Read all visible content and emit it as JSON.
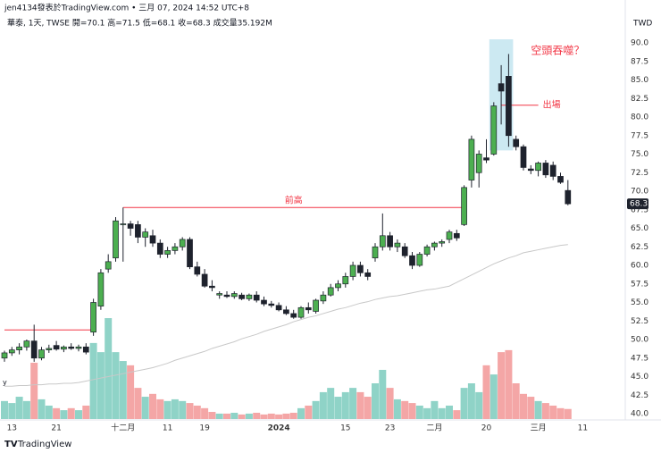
{
  "header": {
    "credit": "jen4134發表於TradingView.com • 三月 07, 2024 14:52 UTC+8",
    "legend": "華泰, 1天, TWSE  開=70.1  高=71.5  低=68.1  收=68.3  成交量35.192M",
    "currency": "TWD",
    "brand": "TradingView",
    "stray_label": "y"
  },
  "chart_data": {
    "type": "candlestick",
    "categories": [
      null,
      "13",
      null,
      null,
      null,
      null,
      null,
      "21",
      null,
      null,
      null,
      null,
      null,
      null,
      null,
      null,
      "十二月",
      null,
      null,
      null,
      null,
      null,
      "11",
      null,
      null,
      null,
      null,
      "19",
      null,
      null,
      null,
      null,
      null,
      null,
      null,
      null,
      null,
      "2024",
      null,
      null,
      null,
      null,
      null,
      null,
      null,
      null,
      "15",
      null,
      null,
      null,
      null,
      null,
      "23",
      null,
      null,
      null,
      null,
      null,
      "二月",
      null,
      null,
      null,
      null,
      null,
      null,
      "20",
      null,
      null,
      null,
      null,
      null,
      null,
      "三月",
      null,
      null,
      null,
      null,
      null,
      "11",
      null
    ],
    "open": [
      47.5,
      48.2,
      48.6,
      49,
      49.8,
      47.5,
      48.6,
      49.2,
      48.7,
      49,
      48.8,
      49,
      51,
      54.5,
      59.5,
      61,
      65.5,
      65.6,
      65.5,
      63.8,
      64,
      63,
      61.5,
      62,
      62.5,
      63.5,
      59.8,
      58.8,
      57.2,
      56,
      56,
      55.8,
      56,
      55.5,
      56,
      55.3,
      54.8,
      54.6,
      54,
      53.5,
      53,
      54.3,
      53.8,
      55.2,
      56,
      57,
      57.5,
      58.5,
      60,
      59,
      61,
      62.5,
      64,
      62.5,
      62.5,
      61.3,
      60,
      61.5,
      62.5,
      63,
      63.5,
      64.3,
      65.5,
      71.5,
      72.5,
      74.5,
      75,
      84.5,
      85.5,
      77,
      76,
      73,
      72.8,
      73.8,
      73.5,
      72,
      70.1,
      null,
      null,
      null
    ],
    "high": [
      48.5,
      49,
      49.5,
      50,
      52,
      49,
      49.3,
      49.8,
      49.2,
      49.5,
      49.3,
      49.5,
      55.5,
      59.5,
      61.5,
      66.5,
      67.8,
      66,
      66,
      65,
      64.8,
      63.5,
      62.5,
      63,
      63.8,
      63.8,
      60.5,
      59.5,
      58,
      56.5,
      56.5,
      56.5,
      56.3,
      56.2,
      56.5,
      55.8,
      55.2,
      55,
      54.5,
      54,
      54.5,
      55,
      55.5,
      56.5,
      57.5,
      58,
      59,
      60.5,
      60.5,
      59.5,
      63,
      67,
      64.5,
      63.5,
      63,
      61.8,
      61.8,
      62.8,
      63.2,
      63.5,
      64.8,
      64.8,
      70.8,
      77.5,
      75.5,
      77,
      82,
      87,
      88.5,
      77.5,
      76.3,
      73.5,
      74,
      74.2,
      74,
      72.5,
      71.5,
      null,
      null,
      null
    ],
    "low": [
      47,
      47.8,
      48,
      48.5,
      47,
      47.2,
      48.2,
      48.5,
      48.3,
      48.6,
      48.4,
      48,
      50.5,
      54,
      59,
      60.5,
      60.5,
      64,
      63,
      62.5,
      62.5,
      61,
      61,
      61.5,
      62,
      59.5,
      58.5,
      57,
      56.5,
      55.5,
      55.6,
      55.5,
      55.3,
      55.2,
      55,
      54.5,
      54.3,
      53.8,
      53.3,
      52.8,
      52.8,
      53.5,
      53.5,
      54.8,
      55.8,
      56.5,
      57,
      58,
      58.5,
      58,
      60.5,
      62,
      62,
      61.8,
      61,
      59.5,
      59.8,
      61.2,
      62,
      62.5,
      63,
      63.3,
      65.3,
      70.5,
      70.5,
      73.8,
      74.8,
      79,
      76,
      75.5,
      72.8,
      72.3,
      72,
      71.8,
      71.5,
      71,
      68.1,
      null,
      null,
      null
    ],
    "close": [
      48.2,
      48.6,
      49,
      49.8,
      47.5,
      48.6,
      48.8,
      48.7,
      49,
      48.8,
      49,
      48.3,
      55,
      59,
      60.5,
      66,
      65.6,
      65,
      63.8,
      64.5,
      63,
      61.5,
      62,
      62.5,
      63.5,
      59.8,
      58.8,
      57.2,
      57,
      56.2,
      55.8,
      56.2,
      55.5,
      56,
      55.3,
      54.8,
      54.6,
      54,
      53.5,
      53,
      54.3,
      54,
      55.3,
      56,
      57,
      57.5,
      58.5,
      60,
      59,
      58.5,
      62.5,
      64,
      62.5,
      63,
      61.3,
      60,
      61.5,
      62.5,
      63,
      63.2,
      64.5,
      63.7,
      70.5,
      77,
      75,
      74.2,
      81.5,
      83.5,
      77.5,
      76,
      73.2,
      72.8,
      73.8,
      72.2,
      72,
      71.2,
      68.3,
      null,
      null,
      null
    ],
    "volume": [
      63,
      56,
      78,
      63,
      197,
      69,
      47,
      38,
      31,
      38,
      31,
      47,
      266,
      234,
      353,
      234,
      203,
      188,
      109,
      78,
      88,
      69,
      63,
      69,
      63,
      56,
      47,
      38,
      25,
      19,
      19,
      22,
      16,
      19,
      22,
      16,
      19,
      16,
      19,
      22,
      38,
      47,
      63,
      94,
      109,
      78,
      94,
      109,
      94,
      78,
      125,
      172,
      109,
      69,
      63,
      56,
      47,
      38,
      63,
      38,
      47,
      31,
      109,
      125,
      94,
      188,
      156,
      234,
      241,
      125,
      88,
      78,
      63,
      56,
      47,
      38,
      35.192,
      null,
      null,
      null
    ],
    "ma": [
      43.7,
      43.7,
      43.8,
      43.8,
      43.9,
      43.9,
      44.0,
      44.0,
      44.1,
      44.1,
      44.2,
      44.4,
      44.6,
      44.8,
      45.0,
      45.2,
      45.4,
      45.6,
      45.8,
      46.0,
      46.2,
      46.5,
      46.8,
      47.2,
      47.5,
      47.8,
      48.1,
      48.4,
      48.8,
      49.1,
      49.4,
      49.7,
      50.1,
      50.4,
      50.7,
      51.1,
      51.4,
      51.7,
      52.0,
      52.4,
      52.7,
      53.0,
      53.2,
      53.5,
      53.8,
      54.1,
      54.3,
      54.6,
      54.9,
      55.1,
      55.4,
      55.6,
      55.8,
      55.9,
      56.1,
      56.3,
      56.5,
      56.7,
      56.8,
      57.0,
      57.2,
      57.7,
      58.2,
      58.7,
      59.2,
      59.7,
      60.2,
      60.6,
      61.0,
      61.3,
      61.7,
      61.9,
      62.1,
      62.3,
      62.5,
      62.7,
      62.8,
      null,
      null,
      null
    ],
    "up_color": "#4caf50",
    "down_color": "#1e222d",
    "volume_up_color": "#8fd3c7",
    "volume_down_color": "#f4a6a6",
    "ma_color": "#c8c8c8",
    "ylim": [
      40,
      90
    ],
    "yticks": [
      {
        "value": 40,
        "label": "40.0"
      },
      42.5,
      {
        "value": 45,
        "label": "45.0"
      },
      47.5,
      {
        "value": 50,
        "label": "50.0"
      },
      52.5,
      {
        "value": 55,
        "label": "55.0"
      },
      57.5,
      {
        "value": 60,
        "label": "60.0"
      },
      62.5,
      {
        "value": 65,
        "label": "65.0"
      },
      67.5,
      {
        "value": 70,
        "label": "70.0"
      },
      72.5,
      {
        "value": 75,
        "label": "75.0"
      },
      77.5,
      {
        "value": 80,
        "label": "80.0"
      },
      82.5,
      {
        "value": 85,
        "label": "85.0"
      },
      87.5,
      {
        "value": 90,
        "label": "90.0"
      }
    ],
    "annotations": [
      {
        "price": 51.3,
        "from": 0,
        "to": 12,
        "color": "#f23645"
      },
      {
        "text": "前高",
        "price": 67.8,
        "from": 16,
        "to": 62,
        "color": "#f23645"
      },
      {
        "text": "出場",
        "price": 81.6,
        "from": 67,
        "to": 72,
        "color": "#f23645"
      }
    ],
    "highlight": {
      "text": "空頭吞噬？",
      "from": 66,
      "to": 68,
      "range": [
        75.5,
        90
      ],
      "color": "#bfe3ef",
      "text_color": "#f23645"
    }
  }
}
